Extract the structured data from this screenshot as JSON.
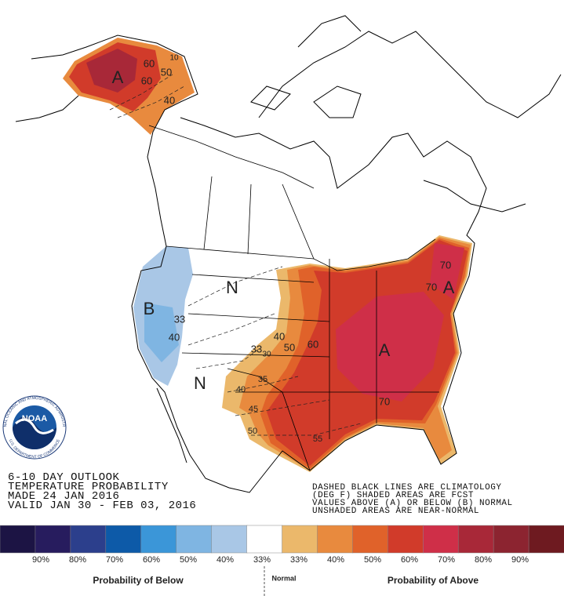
{
  "map_labels": [
    "A",
    "60",
    "50",
    "60",
    "40",
    "10",
    "B",
    "33",
    "40",
    "N",
    "N",
    "33",
    "30",
    "40",
    "50",
    "60",
    "A",
    "70",
    "70",
    "70",
    "A",
    "40",
    "45",
    "50",
    "35",
    "55"
  ],
  "outlook": {
    "lines": [
      "6-10 DAY OUTLOOK",
      "TEMPERATURE PROBABILITY",
      "MADE  24 JAN 2016",
      "VALID  JAN 30 - FEB 03, 2016"
    ]
  },
  "notes": {
    "lines": [
      "DASHED BLACK LINES ARE CLIMATOLOGY",
      "(DEG F) SHADED AREAS ARE FCST",
      "VALUES ABOVE (A) OR BELOW (B) NORMAL",
      "UNSHADED AREAS ARE NEAR-NORMAL"
    ]
  },
  "logo": {
    "text": "NOAA",
    "ring_top": "NATIONAL OCEANIC AND ATMOSPHERIC ADMINISTRATION",
    "ring_bottom": "U.S. DEPARTMENT OF COMMERCE"
  },
  "legend": {
    "colors": [
      "#1c1444",
      "#271c5e",
      "#2c3f8c",
      "#0d5aa8",
      "#3b96d8",
      "#7fb5e2",
      "#a9c7e6",
      "#ffffff",
      "#ebb86b",
      "#e88a3e",
      "#e0622a",
      "#d13b2a",
      "#cf2f48",
      "#a82838",
      "#8c2430",
      "#6e1a20"
    ],
    "labels": [
      "90%",
      "80%",
      "70%",
      "60%",
      "50%",
      "40%",
      "33%",
      "33%",
      "40%",
      "50%",
      "60%",
      "70%",
      "80%",
      "90%"
    ],
    "below": "Probability of Below",
    "normal": "Normal",
    "above": "Probability of Above"
  }
}
